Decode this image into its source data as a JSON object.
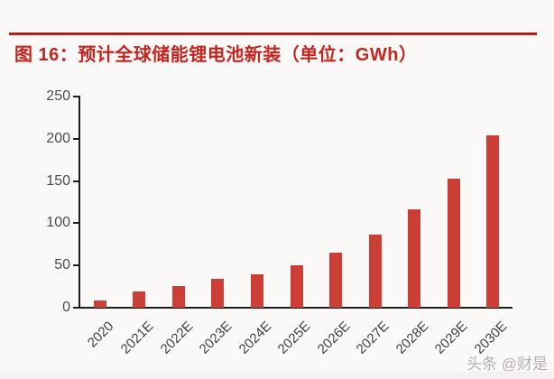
{
  "page": {
    "background": "#fbf9f8",
    "watermark": "头条 @财是"
  },
  "figure": {
    "title": "图 16：预计全球储能锂电池新装（单位：GWh）",
    "title_color": "#c5251f",
    "rule_color": "#b2211e"
  },
  "chart_data": {
    "type": "bar",
    "title": "预计全球储能锂电池新装",
    "unit": "GWh",
    "categories": [
      "2020",
      "2021E",
      "2022E",
      "2023E",
      "2024E",
      "2025E",
      "2026E",
      "2027E",
      "2028E",
      "2029E",
      "2030E"
    ],
    "values": [
      9,
      19,
      26,
      34,
      40,
      50,
      65,
      87,
      116,
      153,
      204
    ],
    "xlabel": "",
    "ylabel": "",
    "ylim": [
      0,
      250
    ],
    "yticks": [
      0,
      50,
      100,
      150,
      200,
      250
    ],
    "grid": false,
    "legend": false,
    "bar_color": "#cd3e37",
    "axis_color": "#1f1f1f",
    "tick_label_color": "#4c4c4c",
    "x_label_color": "#404040"
  }
}
